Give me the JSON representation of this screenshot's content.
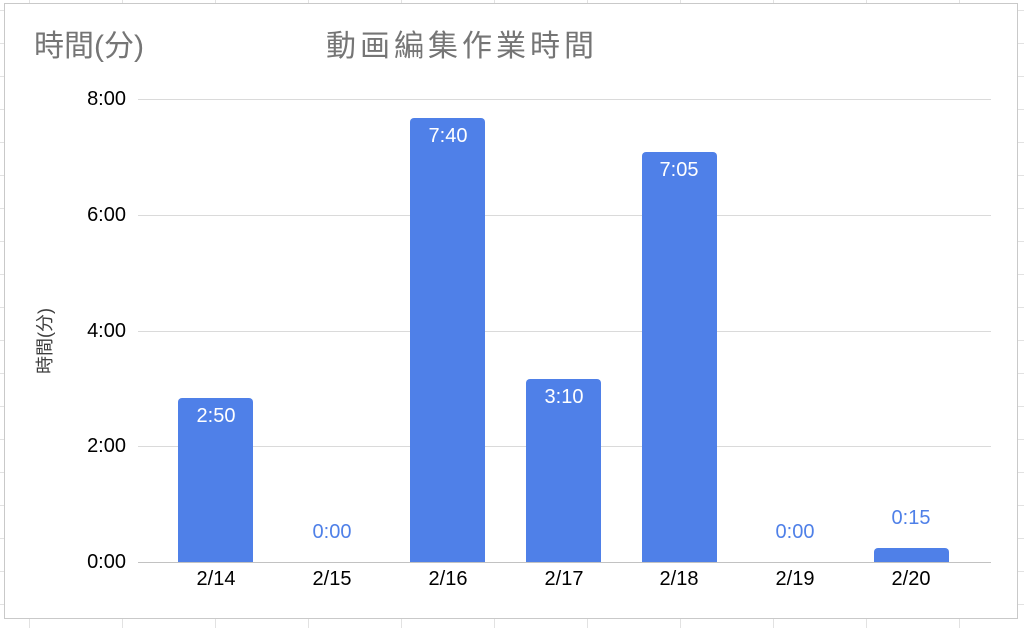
{
  "chart": {
    "corner_label": "時間(分)"
  },
  "chart_data": {
    "type": "bar",
    "title": "動画編集作業時間",
    "xlabel": "",
    "ylabel": "時間(分)",
    "categories": [
      "2/14",
      "2/15",
      "2/16",
      "2/17",
      "2/18",
      "2/19",
      "2/20"
    ],
    "values_hours": [
      2.8333,
      0,
      7.6667,
      3.1667,
      7.0833,
      0,
      0.25
    ],
    "value_labels": [
      "2:50",
      "0:00",
      "7:40",
      "3:10",
      "7:05",
      "0:00",
      "0:15"
    ],
    "y_ticks_bottom_to_top": [
      "0:00",
      "2:00",
      "4:00",
      "6:00",
      "8:00"
    ],
    "ylim_hours": [
      0,
      8
    ],
    "grid": true,
    "legend": "none",
    "colors": {
      "bar": "#4f80e8",
      "zero_label_blue": "#4f80e8",
      "inside_label_white": "#ffffff",
      "title_gray": "#757575",
      "axis_text": "#000000",
      "gridline": "#dadada",
      "baseline": "#c2c2c2",
      "card_border": "#c9c9c9",
      "sheet_grid": "#e2e2e2"
    }
  }
}
